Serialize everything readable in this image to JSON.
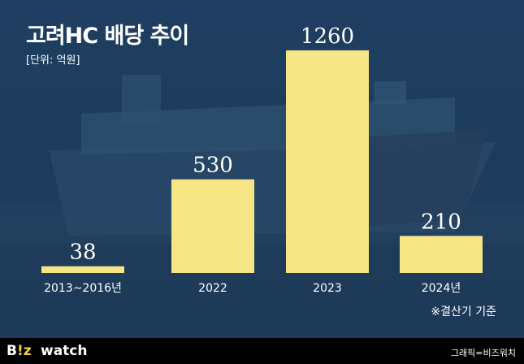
{
  "header": {
    "title": "고려HC 배당 추이",
    "unit": "[단위: 억원]"
  },
  "chart_data": {
    "type": "bar",
    "title": "고려HC 배당 추이",
    "unit": "[단위: 억원]",
    "categories": [
      "2013~2016년",
      "2022",
      "2023",
      "2024년"
    ],
    "values": [
      38,
      530,
      1260,
      210
    ],
    "ylim": [
      0,
      1260
    ],
    "grid": false,
    "bar_color": "#f5e584"
  },
  "note": "※결산기 기준",
  "footer": {
    "logo_b": "B",
    "logo_mark": "!z",
    "logo_watch": "watch",
    "credit": "그래픽=비즈워치"
  }
}
